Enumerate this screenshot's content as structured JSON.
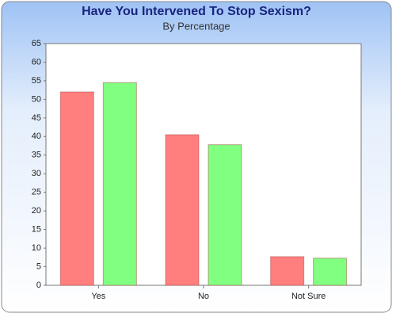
{
  "chart_data": {
    "type": "bar",
    "title": "Have You Intervened To Stop Sexism?",
    "subtitle": "By Percentage",
    "categories": [
      "Yes",
      "No",
      "Not Sure"
    ],
    "series": [
      {
        "color": "#ff7f7f",
        "values": [
          52,
          40.5,
          7.7
        ]
      },
      {
        "color": "#80ff80",
        "values": [
          54.5,
          37.8,
          7.3
        ]
      }
    ],
    "ylim": [
      0,
      65
    ],
    "yticks": [
      0,
      5,
      10,
      15,
      20,
      25,
      30,
      35,
      40,
      45,
      50,
      55,
      60,
      65
    ],
    "grid": false
  }
}
